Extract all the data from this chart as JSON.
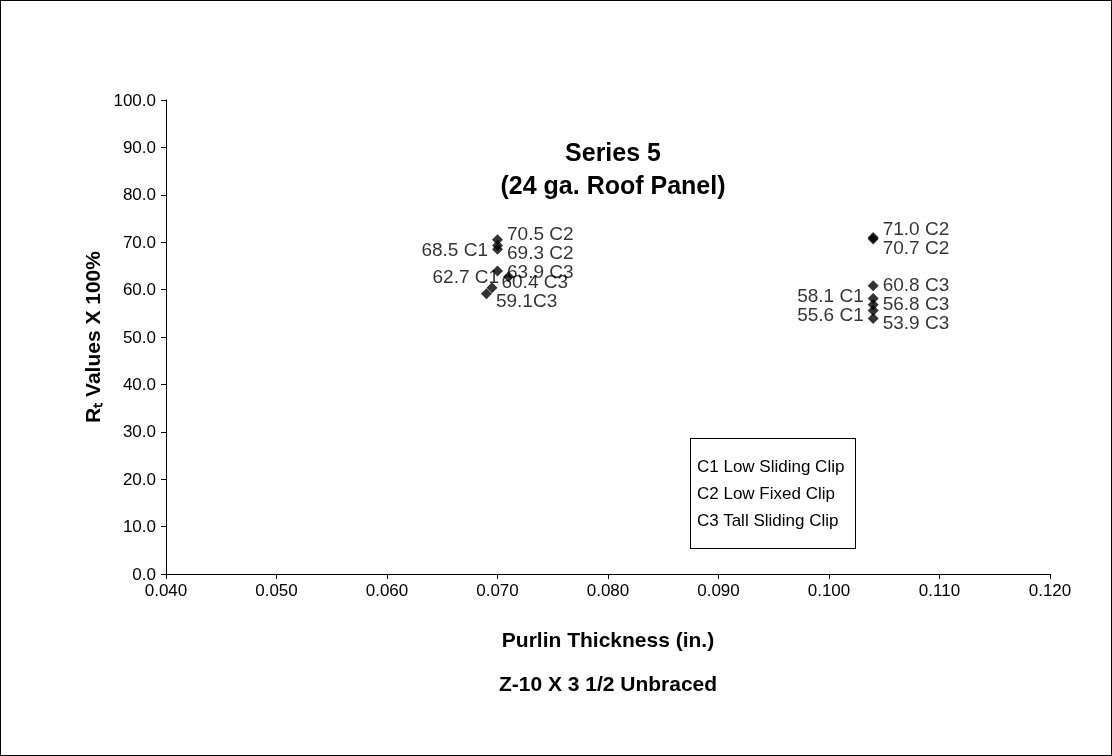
{
  "chart_data": {
    "type": "scatter",
    "title": "Series 5",
    "subtitle": "(24 ga. Roof Panel)",
    "xlabel": "Purlin Thickness (in.)\nZ-10 X 3 1/2 Unbraced",
    "ylabel": "Rₜ Values X 100%",
    "annotations": [
      "C1 Low Sliding Clip",
      "C2 Low Fixed Clip",
      "C3 Tall Sliding Clip"
    ],
    "series": [
      {
        "color": "#000000",
        "x": [
          0.07,
          0.071,
          0.104,
          0.104
        ],
        "values": [
          68.5,
          62.7,
          58.1,
          55.6
        ],
        "value_labels": [
          "68.5 C1",
          "62.7 C1",
          "58.1 C1",
          "55.6 C1"
        ]
      },
      {
        "color": "#000000",
        "x": [
          0.07,
          0.07,
          0.104,
          0.104
        ],
        "values": [
          70.5,
          69.3,
          71.0,
          70.7
        ],
        "value_labels": [
          "70.5 C2",
          "69.3 C2",
          "71.0 C2",
          "70.7 C2"
        ]
      },
      {
        "color": "#000000",
        "x": [
          0.07,
          0.0695,
          0.069,
          0.104,
          0.104,
          0.104
        ],
        "values": [
          63.9,
          60.4,
          59.1,
          60.8,
          56.8,
          53.9
        ],
        "value_labels": [
          "63.9 C3",
          "60.4 C3",
          "59.1C3",
          "60.8 C3",
          "56.8 C3",
          "53.9 C3"
        ]
      }
    ],
    "xlim": [
      0.04,
      0.12
    ],
    "xticks": [
      {
        "value": 0.04,
        "label": "0.040"
      },
      {
        "value": 0.05,
        "label": "0.050"
      },
      {
        "value": 0.06,
        "label": "0.060"
      },
      {
        "value": 0.07,
        "label": "0.070"
      },
      {
        "value": 0.08,
        "label": "0.080"
      },
      {
        "value": 0.09,
        "label": "0.090"
      },
      {
        "value": 0.1,
        "label": "0.100"
      },
      {
        "value": 0.11,
        "label": "0.110"
      },
      {
        "value": 0.12,
        "label": "0.120"
      }
    ],
    "ylim": [
      0,
      100
    ],
    "yticks": [
      {
        "value": 0,
        "label": "0.0"
      },
      {
        "value": 10,
        "label": "10.0"
      },
      {
        "value": 20,
        "label": "20.0"
      },
      {
        "value": 30,
        "label": "30.0"
      },
      {
        "value": 40,
        "label": "40.0"
      },
      {
        "value": 50,
        "label": "50.0"
      },
      {
        "value": 60,
        "label": "60.0"
      },
      {
        "value": 70,
        "label": "70.0"
      },
      {
        "value": 80,
        "label": "80.0"
      },
      {
        "value": 90,
        "label": "90.0"
      },
      {
        "value": 100,
        "label": "100.0"
      }
    ],
    "grid": false,
    "marker": "diamond"
  }
}
